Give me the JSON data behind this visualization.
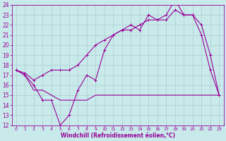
{
  "background_color": "#c8eaea",
  "grid_color": "#aacccc",
  "line_color": "#990099",
  "xlabel": "Windchill (Refroidissement éolien,°C)",
  "xlim": [
    -0.5,
    23.5
  ],
  "ylim": [
    12,
    24
  ],
  "yticks": [
    12,
    13,
    14,
    15,
    16,
    17,
    18,
    19,
    20,
    21,
    22,
    23,
    24
  ],
  "xticks": [
    0,
    1,
    2,
    3,
    4,
    5,
    6,
    7,
    8,
    9,
    10,
    11,
    12,
    13,
    14,
    15,
    16,
    17,
    18,
    19,
    20,
    21,
    22,
    23
  ],
  "series1_x": [
    0,
    1,
    2,
    3,
    4,
    5,
    6,
    7,
    8,
    9,
    10,
    11,
    12,
    13,
    14,
    15,
    16,
    17,
    18,
    19,
    20,
    21,
    22,
    23
  ],
  "series1_y": [
    17.5,
    17.0,
    16.0,
    14.5,
    14.5,
    12.0,
    13.0,
    15.5,
    17.0,
    16.5,
    19.5,
    21.0,
    21.5,
    22.0,
    21.5,
    23.0,
    22.5,
    23.0,
    24.5,
    23.0,
    23.0,
    21.0,
    17.5,
    15.0
  ],
  "series2_x": [
    0,
    1,
    2,
    3,
    4,
    5,
    6,
    7,
    8,
    9,
    10,
    11,
    12,
    13,
    14,
    15,
    16,
    17,
    18,
    19,
    20,
    21,
    22,
    23
  ],
  "series2_y": [
    17.5,
    17.0,
    15.5,
    15.5,
    15.0,
    14.5,
    14.5,
    14.5,
    14.5,
    15.0,
    15.0,
    15.0,
    15.0,
    15.0,
    15.0,
    15.0,
    15.0,
    15.0,
    15.0,
    15.0,
    15.0,
    15.0,
    15.0,
    15.0
  ],
  "series3_x": [
    0,
    1,
    2,
    3,
    4,
    5,
    6,
    7,
    8,
    9,
    10,
    11,
    12,
    13,
    14,
    15,
    16,
    17,
    18,
    19,
    20,
    21,
    22,
    23
  ],
  "series3_y": [
    17.5,
    17.2,
    16.5,
    17.0,
    17.5,
    17.5,
    17.5,
    18.0,
    19.0,
    20.0,
    20.5,
    21.0,
    21.5,
    21.5,
    22.0,
    22.5,
    22.5,
    22.5,
    23.5,
    23.0,
    23.0,
    22.0,
    19.0,
    15.0
  ]
}
